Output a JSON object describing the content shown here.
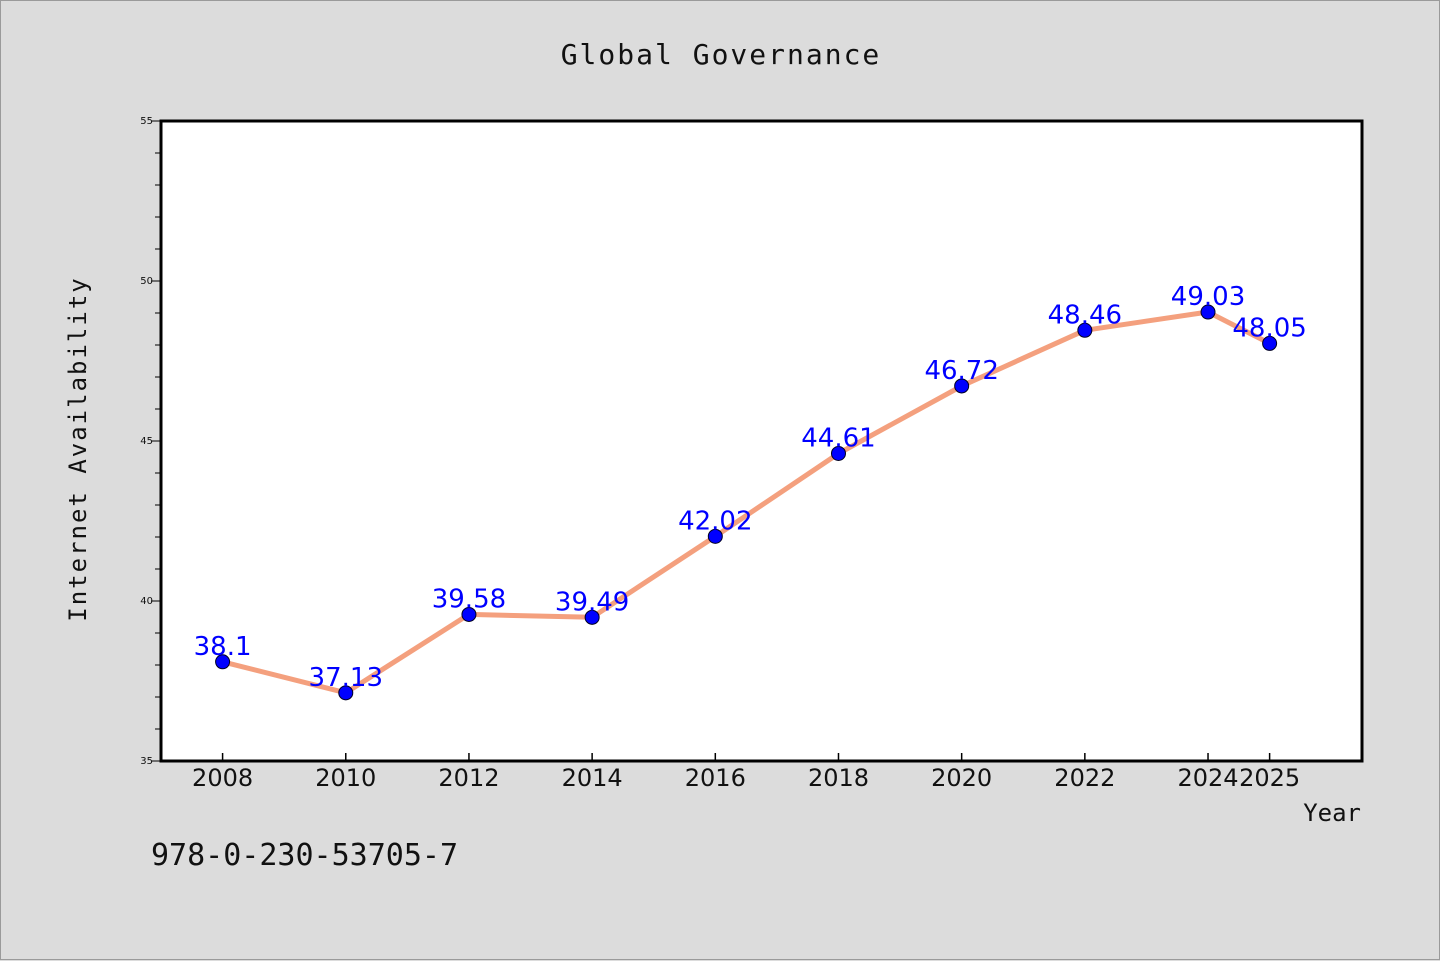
{
  "chart_data": {
    "type": "line",
    "title": "Global Governance",
    "xlabel": "Year",
    "ylabel": "Internet Availability",
    "x": [
      "2008",
      "2010",
      "2012",
      "2014",
      "2016",
      "2018",
      "2020",
      "2022",
      "2024",
      "2025"
    ],
    "series": [
      {
        "values": [
          38.1,
          37.13,
          39.58,
          39.49,
          42.02,
          44.61,
          46.72,
          48.46,
          49.03,
          48.05
        ],
        "labels": [
          "38.1",
          "37.13",
          "39.58",
          "39.49",
          "42.02",
          "44.61",
          "46.72",
          "48.46",
          "49.03",
          "48.05"
        ],
        "line_color": "#f4a07e",
        "marker_color": "#0000ff"
      }
    ],
    "ylim": [
      35,
      55
    ],
    "yticks": [
      35,
      40,
      45,
      50,
      55
    ],
    "ytick_labels": [
      "35",
      "40",
      "45",
      "50",
      "55"
    ],
    "grid": false,
    "legend": "none"
  },
  "annotation": "978-0-230-53705-7"
}
